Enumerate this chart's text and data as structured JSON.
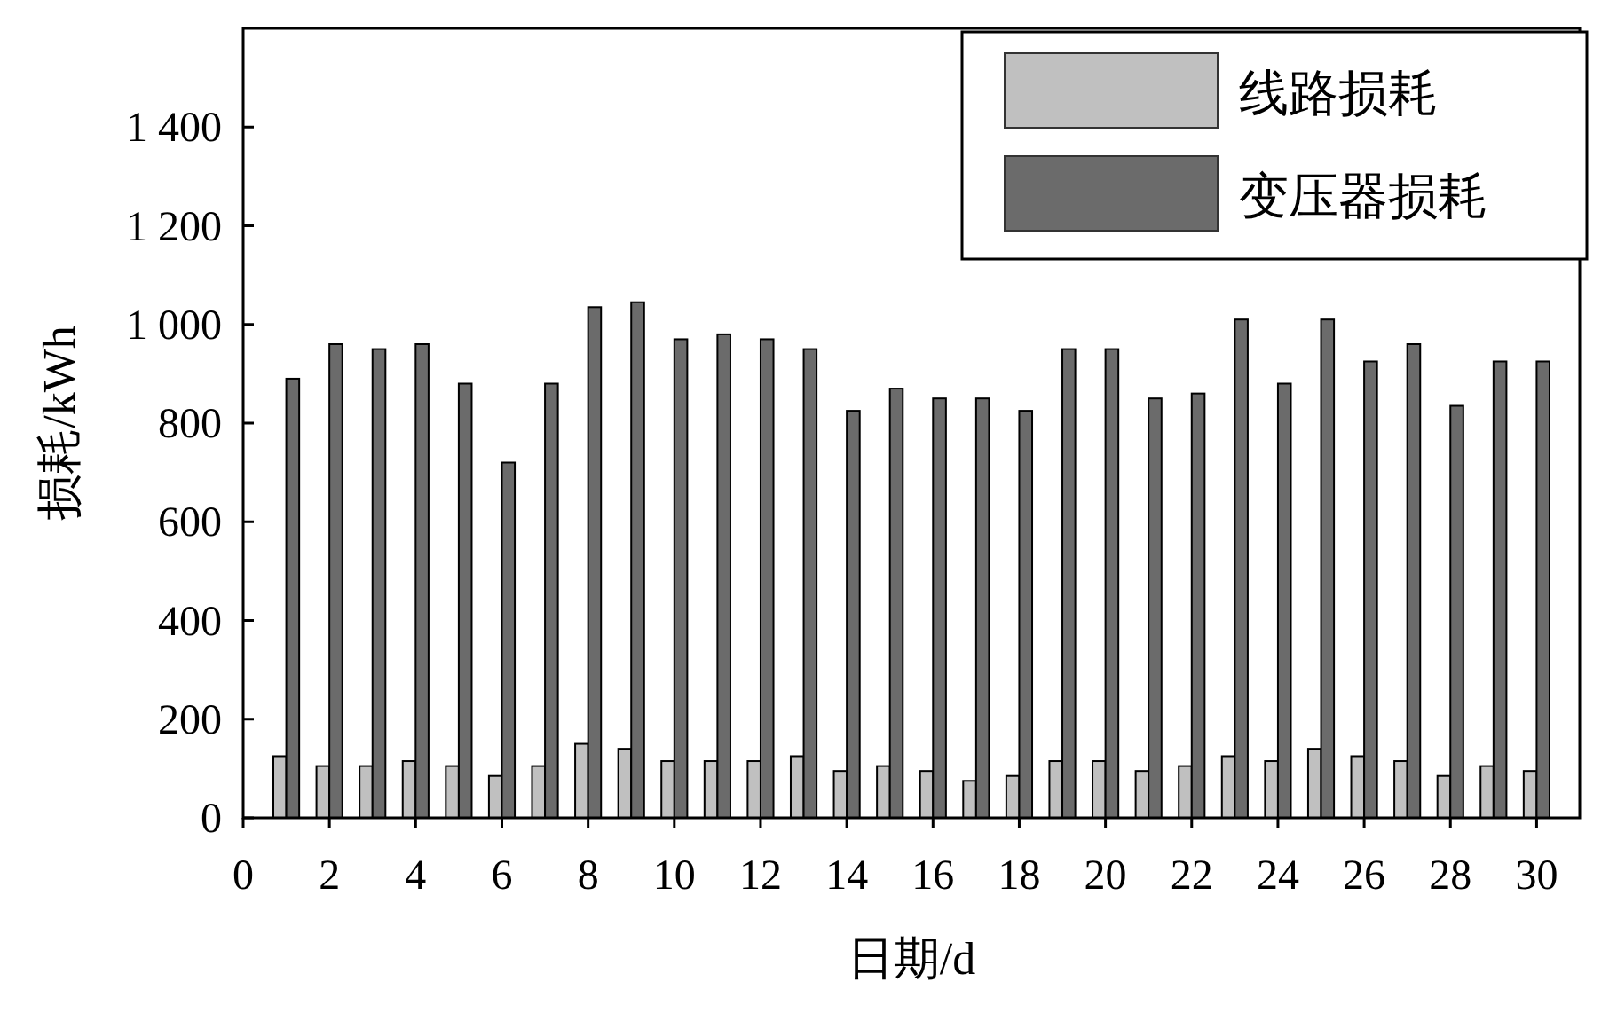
{
  "chart_data": {
    "type": "bar",
    "xlabel": "日期/d",
    "ylabel": "损耗/kWh",
    "x": [
      1,
      2,
      3,
      4,
      5,
      6,
      7,
      8,
      9,
      10,
      11,
      12,
      13,
      14,
      15,
      16,
      17,
      18,
      19,
      20,
      21,
      22,
      23,
      24,
      25,
      26,
      27,
      28,
      29,
      30
    ],
    "xlim": [
      0,
      31
    ],
    "xticks": [
      0,
      2,
      4,
      6,
      8,
      10,
      12,
      14,
      16,
      18,
      20,
      22,
      24,
      26,
      28,
      30
    ],
    "ylim": [
      0,
      1600
    ],
    "yticks": [
      0,
      200,
      400,
      600,
      800,
      {
        "value": 1000,
        "label": "1 000"
      },
      {
        "value": 1200,
        "label": "1 200"
      },
      {
        "value": 1400,
        "label": "1 400"
      }
    ],
    "series": [
      {
        "name": "线路损耗",
        "color": "#c0c0c0",
        "values": [
          125,
          105,
          105,
          115,
          105,
          85,
          105,
          150,
          140,
          115,
          115,
          115,
          125,
          95,
          105,
          95,
          75,
          85,
          115,
          115,
          95,
          105,
          125,
          115,
          140,
          125,
          115,
          85,
          105,
          95
        ]
      },
      {
        "name": "变压器损耗",
        "color": "#6b6b6b",
        "values": [
          890,
          960,
          950,
          960,
          880,
          720,
          880,
          1035,
          1045,
          970,
          980,
          970,
          950,
          825,
          870,
          850,
          850,
          825,
          950,
          950,
          850,
          860,
          1010,
          880,
          1010,
          925,
          960,
          835,
          925,
          925
        ]
      }
    ],
    "legend": "top right",
    "grid": false
  }
}
